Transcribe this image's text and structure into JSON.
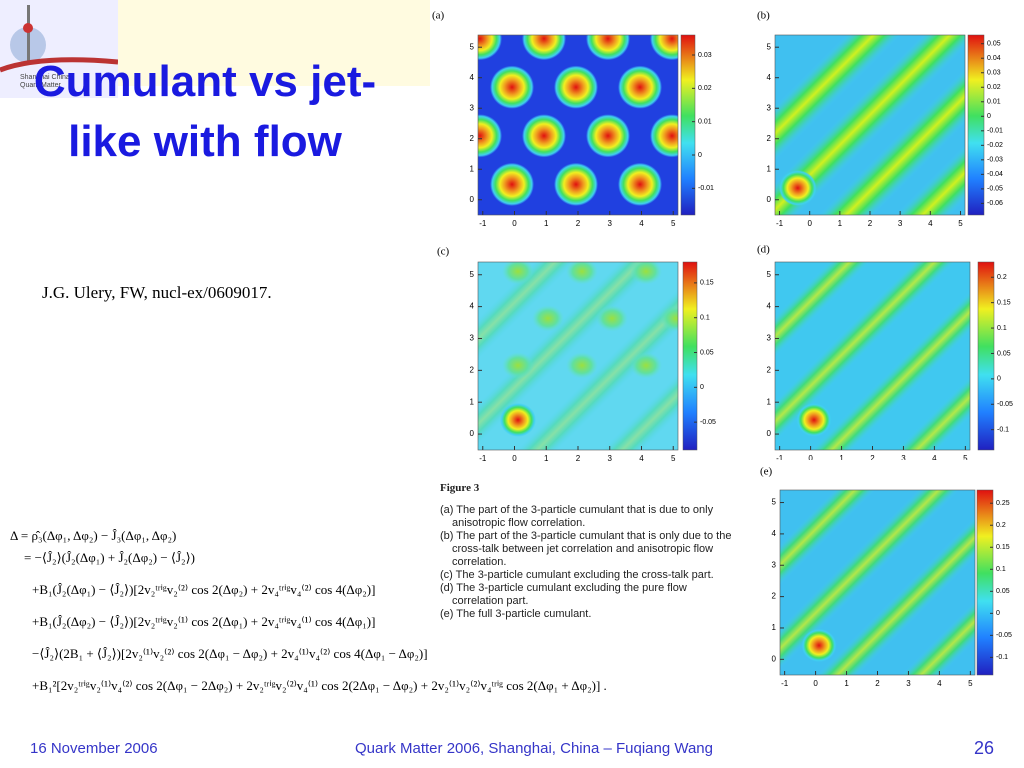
{
  "slide": {
    "logo": {
      "lines": [
        "Shanghai China",
        "Quark Matter"
      ]
    },
    "title": "Cumulant vs jet-like with flow",
    "citation": "J.G. Ulery, FW, nucl-ex/0609017.",
    "panels": [
      {
        "label": "(a)",
        "xticks": [
          "-1",
          "0",
          "1",
          "2",
          "3",
          "4",
          "5"
        ],
        "yticks": [
          "0",
          "1",
          "2",
          "3",
          "4",
          "5"
        ],
        "cbticks": [
          "0.03",
          "0.02",
          "0.01",
          "0",
          "-0.01"
        ]
      },
      {
        "label": "(b)",
        "xticks": [
          "-1",
          "0",
          "1",
          "2",
          "3",
          "4",
          "5"
        ],
        "yticks": [
          "0",
          "1",
          "2",
          "3",
          "4",
          "5"
        ],
        "cbticks": [
          "0.05",
          "0.04",
          "0.03",
          "0.02",
          "0.01",
          "0",
          "-0.01",
          "-0.02",
          "-0.03",
          "-0.04",
          "-0.05",
          "-0.06"
        ]
      },
      {
        "label": "(c)",
        "xticks": [
          "-1",
          "0",
          "1",
          "2",
          "3",
          "4",
          "5"
        ],
        "yticks": [
          "0",
          "1",
          "2",
          "3",
          "4",
          "5"
        ],
        "cbticks": [
          "0.15",
          "0.1",
          "0.05",
          "0",
          "-0.05"
        ]
      },
      {
        "label": "(d)",
        "xticks": [
          "-1",
          "0",
          "1",
          "2",
          "3",
          "4",
          "5"
        ],
        "yticks": [
          "0",
          "1",
          "2",
          "3",
          "4",
          "5"
        ],
        "cbticks": [
          "0.2",
          "0.15",
          "0.1",
          "0.05",
          "0",
          "-0.05",
          "-0.1"
        ]
      },
      {
        "label": "(e)",
        "xticks": [
          "-1",
          "0",
          "1",
          "2",
          "3",
          "4",
          "5"
        ],
        "yticks": [
          "0",
          "1",
          "2",
          "3",
          "4",
          "5"
        ],
        "cbticks": [
          "0.25",
          "0.2",
          "0.15",
          "0.1",
          "0.05",
          "0",
          "-0.05",
          "-0.1"
        ]
      }
    ],
    "figure": {
      "heading": "Figure 3",
      "items": [
        "(a) The part of the 3-particle cumulant that is due to only anisotropic flow correlation.",
        "(b) The part of the 3-particle cumulant that is only due to the cross-talk between jet correlation and anisotropic flow correlation.",
        "(c) The 3-particle cumulant excluding the cross-talk part.",
        "(d) The 3-particle cumulant excluding the pure flow correlation part.",
        "(e) The full 3-particle cumulant."
      ]
    },
    "equations": [
      "Δ = ρ̂₃(Δφ₁, Δφ₂) − Ĵ₃(Δφ₁, Δφ₂)",
      "= −⟨Ĵ₂⟩(Ĵ₂(Δφ₁) + Ĵ₂(Δφ₂) − ⟨Ĵ₂⟩)",
      "+B₁(Ĵ₂(Δφ₁) − ⟨Ĵ₂⟩)[2v₂ᵗʳⁱᵍv₂⁽²⁾ cos 2(Δφ₂) + 2v₄ᵗʳⁱᵍv₄⁽²⁾ cos 4(Δφ₂)]",
      "+B₁(Ĵ₂(Δφ₂) − ⟨Ĵ₂⟩)[2v₂ᵗʳⁱᵍv₂⁽¹⁾ cos 2(Δφ₁) + 2v₄ᵗʳⁱᵍv₄⁽¹⁾ cos 4(Δφ₁)]",
      "−⟨Ĵ₂⟩(2B₁ + ⟨Ĵ₂⟩)[2v₂⁽¹⁾v₂⁽²⁾ cos 2(Δφ₁ − Δφ₂) + 2v₄⁽¹⁾v₄⁽²⁾ cos 4(Δφ₁ − Δφ₂)]",
      "+B₁²[2v₂ᵗʳⁱᵍv₂⁽¹⁾v₄⁽²⁾ cos 2(Δφ₁ − 2Δφ₂) + 2v₂ᵗʳⁱᵍv₂⁽²⁾v₄⁽¹⁾ cos 2(2Δφ₁ − Δφ₂) + 2v₂⁽¹⁾v₂⁽²⁾v₄ᵗʳⁱᵍ cos 2(Δφ₁ + Δφ₂)] ."
    ],
    "footer": {
      "date": "16 November 2006",
      "center": "Quark Matter 2006, Shanghai, China – Fuqiang Wang",
      "page": "26"
    }
  }
}
